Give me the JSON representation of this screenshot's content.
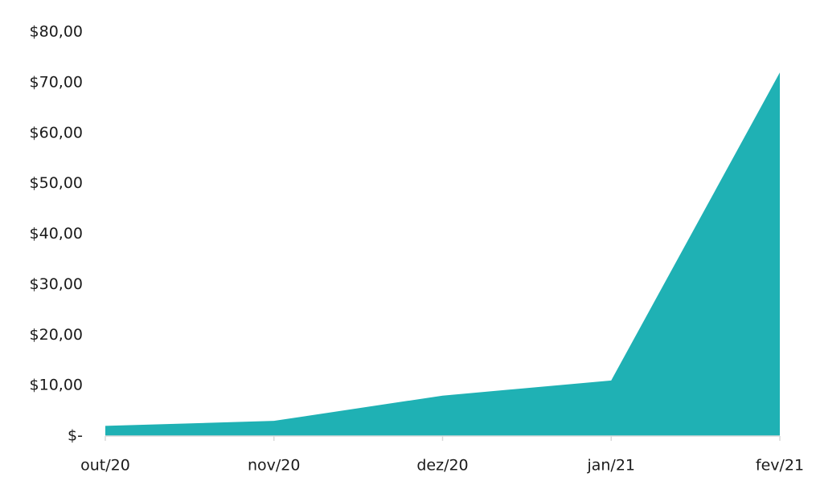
{
  "chart_data": {
    "type": "area",
    "categories": [
      "out/20",
      "nov/20",
      "dez/20",
      "jan/21",
      "fev/21"
    ],
    "values": [
      2,
      3,
      8,
      11,
      72
    ],
    "color": "#1fb1b4",
    "ylim": [
      0,
      80
    ],
    "yticks": [
      {
        "value": 0,
        "label": "$-"
      },
      {
        "value": 10,
        "label": "$10,00"
      },
      {
        "value": 20,
        "label": "$20,00"
      },
      {
        "value": 30,
        "label": "$30,00"
      },
      {
        "value": 40,
        "label": "$40,00"
      },
      {
        "value": 50,
        "label": "$50,00"
      },
      {
        "value": 60,
        "label": "$60,00"
      },
      {
        "value": 70,
        "label": "$70,00"
      },
      {
        "value": 80,
        "label": "$80,00"
      }
    ],
    "grid": false
  }
}
